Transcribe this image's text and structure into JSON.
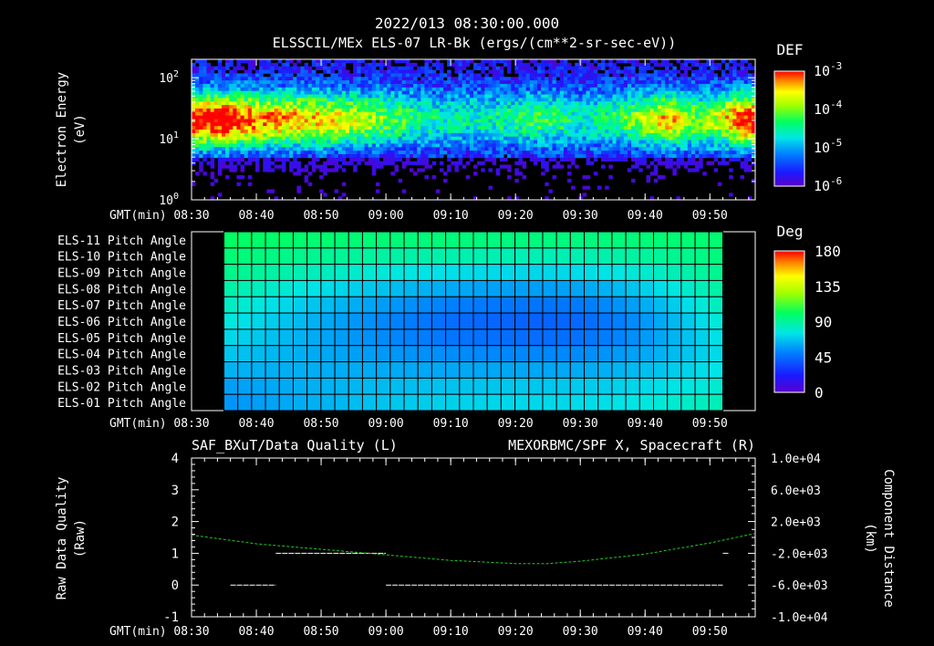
{
  "header": {
    "timestamp": "2022/013 08:30:00.000",
    "subtitle": "ELSSCIL/MEx ELS-07 LR-Bk  (ergs/(cm**2-sr-sec-eV))"
  },
  "time_axis": {
    "label": "GMT(min)",
    "ticks": [
      "08:30",
      "08:40",
      "08:50",
      "09:00",
      "09:10",
      "09:20",
      "09:30",
      "09:40",
      "09:50"
    ]
  },
  "panel1": {
    "ylabel_line1": "Electron Energy",
    "ylabel_line2": "(eV)",
    "yticks": [
      {
        "base": "10",
        "exp": "0",
        "value": 1
      },
      {
        "base": "10",
        "exp": "1",
        "value": 10
      },
      {
        "base": "10",
        "exp": "2",
        "value": 100
      }
    ],
    "colorbar_title": "DEF",
    "colorbar_ticks": [
      {
        "base": "10",
        "exp": "-3",
        "value": 0.001
      },
      {
        "base": "10",
        "exp": "-4",
        "value": 0.0001
      },
      {
        "base": "10",
        "exp": "-5",
        "value": 1e-05
      },
      {
        "base": "10",
        "exp": "-6",
        "value": 1e-06
      }
    ]
  },
  "panel2": {
    "row_labels": [
      "ELS-11 Pitch Angle",
      "ELS-10 Pitch Angle",
      "ELS-09 Pitch Angle",
      "ELS-08 Pitch Angle",
      "ELS-07 Pitch Angle",
      "ELS-06 Pitch Angle",
      "ELS-05 Pitch Angle",
      "ELS-04 Pitch Angle",
      "ELS-03 Pitch Angle",
      "ELS-02 Pitch Angle",
      "ELS-01 Pitch Angle"
    ],
    "colorbar_title": "Deg",
    "colorbar_ticks": [
      "180",
      "135",
      "90",
      "45",
      "0"
    ]
  },
  "panel3": {
    "left_title": "SAF_BXuT/Data Quality (L)",
    "right_title": "MEXORBMC/SPF X, Spacecraft (R)",
    "right_title_color": "#22cc22",
    "ylabel_left_line1": "Raw Data Quality",
    "ylabel_left_line2": "(Raw)",
    "ylabel_right_line1": "Component Distance",
    "ylabel_right_line2": "(km)",
    "left_ticks": [
      "4",
      "3",
      "2",
      "1",
      "0",
      "-1"
    ],
    "right_ticks": [
      "1.0e+04",
      "6.0e+03",
      "2.0e+03",
      "-2.0e+03",
      "-6.0e+03",
      "-1.0e+04"
    ]
  },
  "chart_data": [
    {
      "type": "heatmap",
      "title": "ELSSCIL/MEx ELS-07 LR-Bk  (ergs/(cm**2-sr-sec-eV))",
      "xlabel": "GMT(min)",
      "ylabel": "Electron Energy (eV)",
      "x_range": [
        "08:30",
        "09:57"
      ],
      "y_range": [
        1,
        200
      ],
      "y_scale": "log",
      "color_scale": "log",
      "color_range": [
        1e-06,
        0.001
      ],
      "colorbar_label": "DEF",
      "band_peak_energy_eV": 20,
      "intensity_profile": [
        {
          "time": "08:31",
          "peak": 0.85
        },
        {
          "time": "08:35",
          "peak": 0.9
        },
        {
          "time": "08:40",
          "peak": 0.75
        },
        {
          "time": "08:45",
          "peak": 0.7
        },
        {
          "time": "08:50",
          "peak": 0.65
        },
        {
          "time": "08:55",
          "peak": 0.6
        },
        {
          "time": "09:00",
          "peak": 0.45
        },
        {
          "time": "09:05",
          "peak": 0.35
        },
        {
          "time": "09:10",
          "peak": 0.3
        },
        {
          "time": "09:15",
          "peak": 0.3
        },
        {
          "time": "09:20",
          "peak": 0.35
        },
        {
          "time": "09:25",
          "peak": 0.4
        },
        {
          "time": "09:30",
          "peak": 0.3
        },
        {
          "time": "09:35",
          "peak": 0.35
        },
        {
          "time": "09:40",
          "peak": 0.55
        },
        {
          "time": "09:44",
          "peak": 0.7
        },
        {
          "time": "09:48",
          "peak": 0.45
        },
        {
          "time": "09:52",
          "peak": 0.6
        },
        {
          "time": "09:55",
          "peak": 0.85
        }
      ]
    },
    {
      "type": "heatmap",
      "xlabel": "GMT(min)",
      "ylabel": "ELS anode",
      "x_range": [
        "08:35",
        "09:52"
      ],
      "rows": [
        "ELS-11",
        "ELS-10",
        "ELS-09",
        "ELS-08",
        "ELS-07",
        "ELS-06",
        "ELS-05",
        "ELS-04",
        "ELS-03",
        "ELS-02",
        "ELS-01"
      ],
      "color_range": [
        0,
        180
      ],
      "colorbar_label": "Deg",
      "time_bins": 36,
      "pitch_angle_deg_start": [
        100,
        97,
        93,
        88,
        83,
        78,
        73,
        68,
        63,
        58,
        55
      ],
      "pitch_angle_deg_mid": [
        95,
        85,
        72,
        58,
        47,
        42,
        45,
        52,
        60,
        68,
        72
      ],
      "pitch_angle_deg_end": [
        98,
        96,
        93,
        90,
        85,
        80,
        76,
        74,
        76,
        80,
        85
      ],
      "mid_time": "09:24"
    },
    {
      "type": "line",
      "xlabel": "GMT(min)",
      "series": [
        {
          "axis": "left",
          "ylim": [
            -1,
            4
          ],
          "segments": [
            {
              "x": [
                "08:36",
                "08:43"
              ],
              "y": 0
            },
            {
              "x": [
                "08:43",
                "09:00"
              ],
              "y": 1
            },
            {
              "x": [
                "09:00",
                "09:52"
              ],
              "y": 0
            },
            {
              "x": [
                "09:52",
                "09:53"
              ],
              "y": 1
            }
          ]
        },
        {
          "name": "MEXORBMC/SPF X, Spacecraft",
          "axis": "right",
          "color": "#22cc22",
          "ylim": [
            -10000,
            10000
          ],
          "x": [
            "08:30",
            "08:40",
            "08:50",
            "09:00",
            "09:10",
            "09:20",
            "09:25",
            "09:30",
            "09:40",
            "09:50",
            "09:57"
          ],
          "y": [
            300,
            -800,
            -1500,
            -2200,
            -2900,
            -3300,
            -3300,
            -3000,
            -2100,
            -700,
            500
          ]
        }
      ]
    }
  ]
}
